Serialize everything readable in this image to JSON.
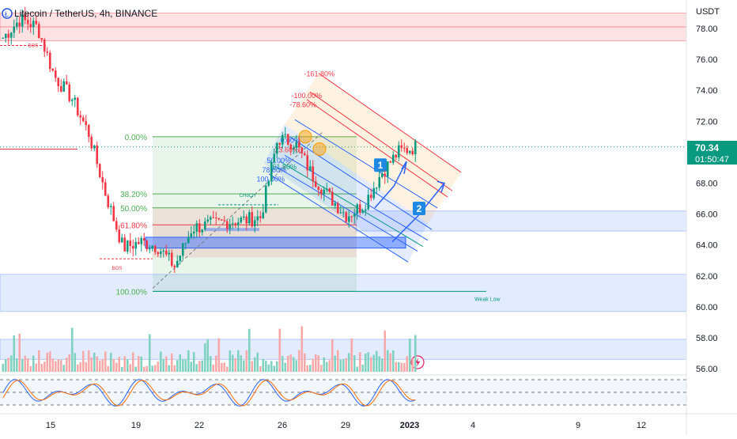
{
  "header": {
    "title": "Litecoin / TetherUS, 4h, BINANCE",
    "currency": "USDT"
  },
  "price_badge": {
    "price": "70.34",
    "countdown": "01:50:47",
    "color": "#089981"
  },
  "colors": {
    "up": "#089981",
    "down": "#f23645",
    "fib": "#4caf50",
    "fib_ext": "#f23645",
    "blue": "#2962ff",
    "volume_up": "#7fd1c0",
    "volume_down": "#f7a9a9"
  },
  "labels": {
    "fib_0": "0.00%",
    "fib_382": "38.20%",
    "fib_50": "50.00%",
    "fib_618": "61.80%",
    "fib_100": "100.00%",
    "bos_1": "BOS",
    "bos_2": "BOS",
    "choch": "CHoCH",
    "weak_low": "Weak Low",
    "ch_0": "0.00%",
    "ch_236": "23.60%",
    "ch_50": "50.00%",
    "ch_618": "61.80%",
    "ch_786": "78.60%",
    "ch_100": "100.00%",
    "ext_1618": "-161.80%",
    "ext_100": "-100.00%",
    "ext_786": "-78.60%",
    "marker_1": "1",
    "marker_2": "2"
  },
  "chart_data": {
    "type": "candlestick",
    "title": "Litecoin / TetherUS, 4h, BINANCE",
    "ylabel": "USDT",
    "ylim": [
      55.8,
      79.2
    ],
    "y_ticks": [
      "78.00",
      "76.00",
      "74.00",
      "72.00",
      "70.00",
      "68.00",
      "66.00",
      "64.00",
      "62.00",
      "60.00",
      "58.00",
      "56.00"
    ],
    "x_ticks": [
      "15",
      "19",
      "22",
      "26",
      "29",
      "2023",
      "4",
      "9",
      "12"
    ],
    "last_price": 70.34,
    "series": [
      {
        "name": "price",
        "close_path_approx": [
          77.4,
          78.6,
          78.1,
          74.9,
          73.5,
          71.2,
          67.2,
          63.8,
          64.2,
          63.9,
          62.6,
          65.1,
          65.3,
          65.5,
          65.6,
          65.8,
          70.9,
          70.6,
          68.5,
          67.1,
          65.9,
          66.6,
          68.6,
          70.0,
          70.34
        ]
      }
    ],
    "levels": {
      "fib_retracement": {
        "0.00%": 71.0,
        "38.20%": 67.3,
        "50.00%": 66.4,
        "61.80%": 65.3,
        "100.00%": 61.0
      },
      "weak_low": 61.0,
      "supply_zone": [
        77.2,
        79.0
      ],
      "demand_zones": [
        [
          59.7,
          62.1
        ],
        [
          56.6,
          57.9
        ],
        [
          64.9,
          66.2
        ]
      ]
    }
  }
}
